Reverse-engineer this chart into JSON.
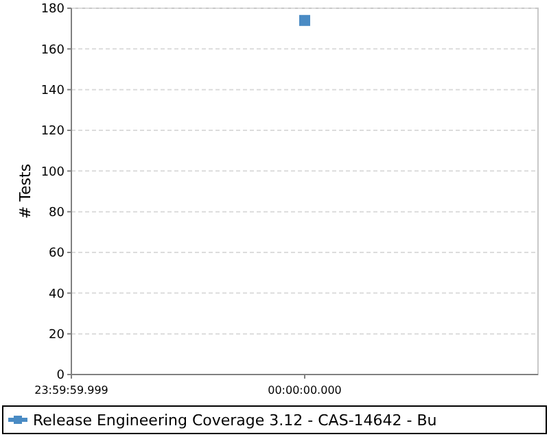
{
  "chart_data": {
    "type": "scatter",
    "ylabel": "# Tests",
    "categories": [
      "23:59:59.999",
      "00:00:00.000",
      null
    ],
    "series": [
      {
        "name": "Release Engineering Coverage 3.12 - CAS-14642 - Bu",
        "color": "#4a8bc4",
        "values": [
          null,
          174,
          null
        ]
      }
    ],
    "ylim": [
      0,
      180
    ],
    "yticks": [
      0,
      20,
      40,
      60,
      80,
      100,
      120,
      140,
      160,
      180
    ],
    "grid": "y",
    "legend": "bottom",
    "marker": "square"
  }
}
